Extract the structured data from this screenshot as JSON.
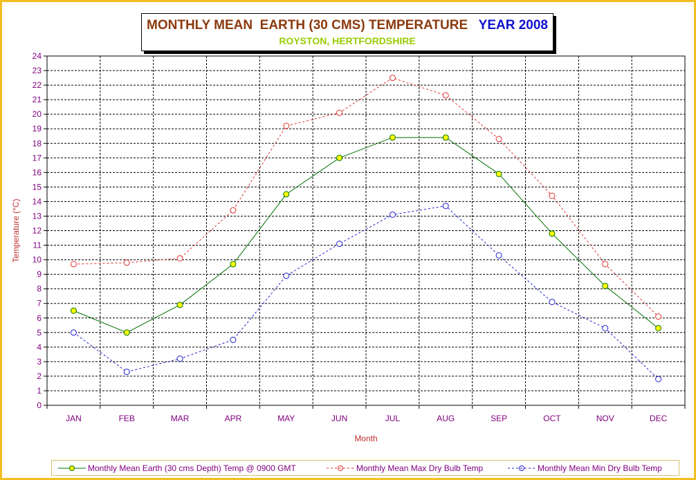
{
  "title": {
    "main": "MONTHLY MEAN  EARTH (30 CMS) TEMPERATURE",
    "year": "YEAR 2008",
    "subtitle": "ROYSTON, HERTFORDSHIRE"
  },
  "colors": {
    "frame": "#f0c020",
    "title_main": "#8b3a0e",
    "title_year": "#1010d0",
    "subtitle": "#99cc00",
    "axis_text": "#800080",
    "axis_title": "#c03030",
    "earth": "#007000",
    "earth_marker_fill": "#ffff00",
    "max": "#e03030",
    "min": "#2020d0"
  },
  "chart_data": {
    "type": "line",
    "title": "MONTHLY MEAN  EARTH (30 CMS) TEMPERATURE   YEAR 2008",
    "subtitle": "ROYSTON, HERTFORDSHIRE",
    "xlabel": "Month",
    "ylabel": "Temperature (°C)",
    "ylim": [
      0,
      24
    ],
    "yticks": [
      0,
      1,
      2,
      3,
      4,
      5,
      6,
      7,
      8,
      9,
      10,
      11,
      12,
      13,
      14,
      15,
      16,
      17,
      18,
      19,
      20,
      21,
      22,
      23,
      24
    ],
    "categories": [
      "JAN",
      "FEB",
      "MAR",
      "APR",
      "MAY",
      "JUN",
      "JUL",
      "AUG",
      "SEP",
      "OCT",
      "NOV",
      "DEC"
    ],
    "grid": true,
    "legend_position": "bottom",
    "series": [
      {
        "name": "Monthly Mean Earth (30 cms Depth) Temp @ 0900 GMT",
        "style": "solid",
        "color": "#007000",
        "values": [
          6.5,
          5.0,
          6.9,
          9.7,
          14.5,
          17.0,
          18.4,
          18.4,
          15.9,
          11.8,
          8.2,
          5.3
        ]
      },
      {
        "name": "Monthly Mean Max Dry Bulb Temp",
        "style": "dashed",
        "color": "#e03030",
        "values": [
          9.7,
          9.8,
          10.1,
          13.4,
          19.2,
          20.1,
          22.5,
          21.3,
          18.3,
          14.4,
          9.7,
          6.1
        ]
      },
      {
        "name": "Monthly Mean Min Dry Bulb Temp",
        "style": "dashed",
        "color": "#2020d0",
        "values": [
          5.0,
          2.3,
          3.2,
          4.5,
          8.9,
          11.1,
          13.1,
          13.7,
          10.3,
          7.1,
          5.3,
          1.8
        ]
      }
    ]
  }
}
